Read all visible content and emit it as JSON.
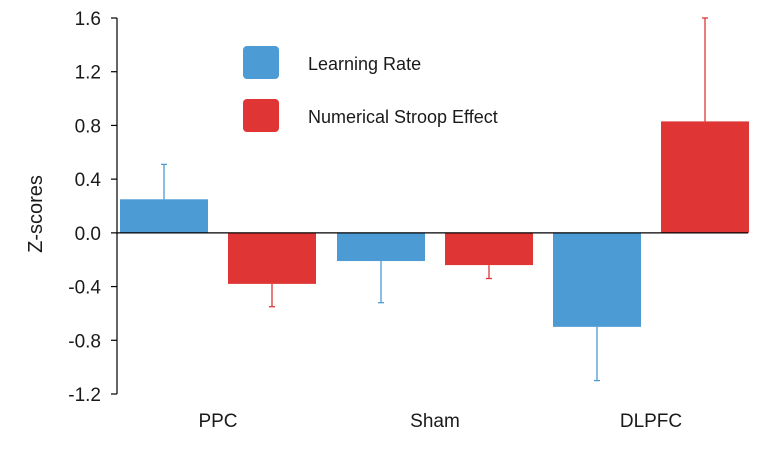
{
  "chart_data": {
    "type": "bar",
    "ylabel": "Z-scores",
    "ylim": [
      -1.2,
      1.6
    ],
    "yticks": [
      "1.6",
      "1.2",
      "0.8",
      "0.4",
      "0.0",
      "-0.4",
      "-0.8",
      "-1.2"
    ],
    "ytick_values": [
      1.6,
      1.2,
      0.8,
      0.4,
      0.0,
      -0.4,
      -0.8,
      -1.2
    ],
    "categories": [
      "PPC",
      "Sham",
      "DLPFC"
    ],
    "series": [
      {
        "name": "Learning Rate",
        "color": "#4d9bd5",
        "values": [
          0.25,
          -0.21,
          -0.7
        ],
        "errors": [
          0.26,
          0.31,
          0.4
        ]
      },
      {
        "name": "Numerical Stroop Effect",
        "color": "#e03535",
        "values": [
          -0.38,
          -0.24,
          0.83
        ],
        "errors": [
          0.17,
          0.1,
          0.77
        ]
      }
    ],
    "legend_position": "top-left",
    "grid": false
  }
}
